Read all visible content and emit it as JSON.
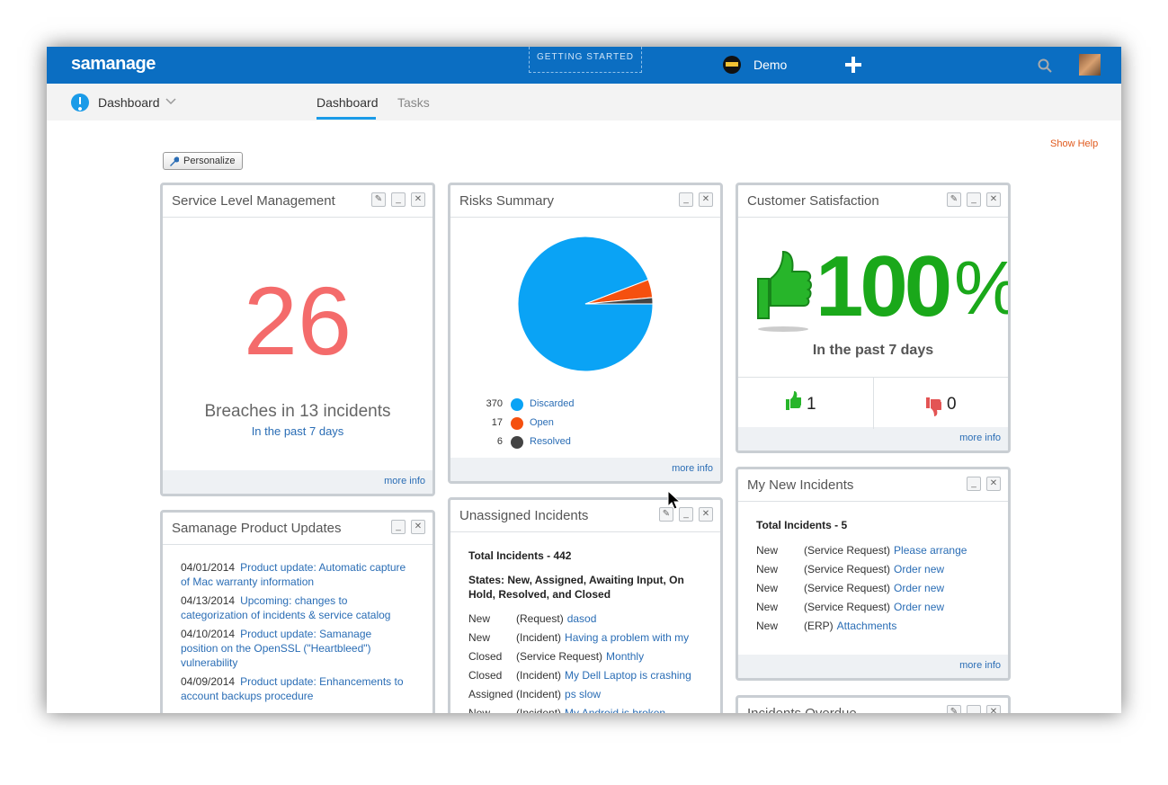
{
  "header": {
    "logo": "samanage",
    "getting_started": "GETTING STARTED",
    "user": "Demo"
  },
  "nav": {
    "section": "Dashboard",
    "tabs": [
      "Dashboard",
      "Tasks"
    ]
  },
  "show_help": "Show Help",
  "personalize": "Personalize",
  "widgets": {
    "slm": {
      "title": "Service Level Management",
      "value": 26,
      "caption": "Breaches in 13 incidents",
      "period": "In the past 7 days",
      "more": "more info"
    },
    "risks": {
      "title": "Risks Summary",
      "chart_data": {
        "type": "pie",
        "categories": [
          "Discarded",
          "Open",
          "Resolved"
        ],
        "values": [
          370,
          17,
          6
        ],
        "colors": [
          "#0aa3f5",
          "#f5500f",
          "#444444"
        ]
      },
      "more": "more info"
    },
    "csat": {
      "title": "Customer Satisfaction",
      "score": 100,
      "score_unit": "%",
      "period": "In the past 7 days",
      "up": 1,
      "down": 0,
      "more": "more info"
    },
    "updates": {
      "title": "Samanage Product Updates",
      "items": [
        {
          "date": "04/01/2014",
          "text": "Product update: Automatic capture of Mac warranty information"
        },
        {
          "date": "04/13/2014",
          "text": "Upcoming: changes to categorization of incidents & service catalog"
        },
        {
          "date": "04/10/2014",
          "text": "Product update: Samanage position on the OpenSSL (\"Heartbleed\") vulnerability"
        },
        {
          "date": "04/09/2014",
          "text": "Product update: Enhancements to account backups procedure"
        }
      ]
    },
    "unassigned": {
      "title": "Unassigned Incidents",
      "total": "Total Incidents - 442",
      "states": "States: New, Assigned, Awaiting Input, On Hold, Resolved, and Closed",
      "rows": [
        [
          "New",
          "(Request)",
          "dasod"
        ],
        [
          "New",
          "(Incident)",
          "Having a problem with my"
        ],
        [
          "Closed",
          "(Service Request)",
          "Monthly"
        ],
        [
          "Closed",
          "(Incident)",
          "My Dell Laptop is crashing"
        ],
        [
          "Assigned",
          "(Incident)",
          "ps slow"
        ],
        [
          "New",
          "(Incident)",
          "My Android is broken"
        ]
      ]
    },
    "my_new": {
      "title": "My New Incidents",
      "total": "Total Incidents - 5",
      "rows": [
        [
          "New",
          "(Service Request)",
          "Please arrange"
        ],
        [
          "New",
          "(Service Request)",
          "Order new"
        ],
        [
          "New",
          "(Service Request)",
          "Order new"
        ],
        [
          "New",
          "(Service Request)",
          "Order new"
        ],
        [
          "New",
          "(ERP)",
          "Attachments"
        ]
      ],
      "more": "more info"
    },
    "overdue": {
      "title": "Incidents Overdue"
    }
  }
}
